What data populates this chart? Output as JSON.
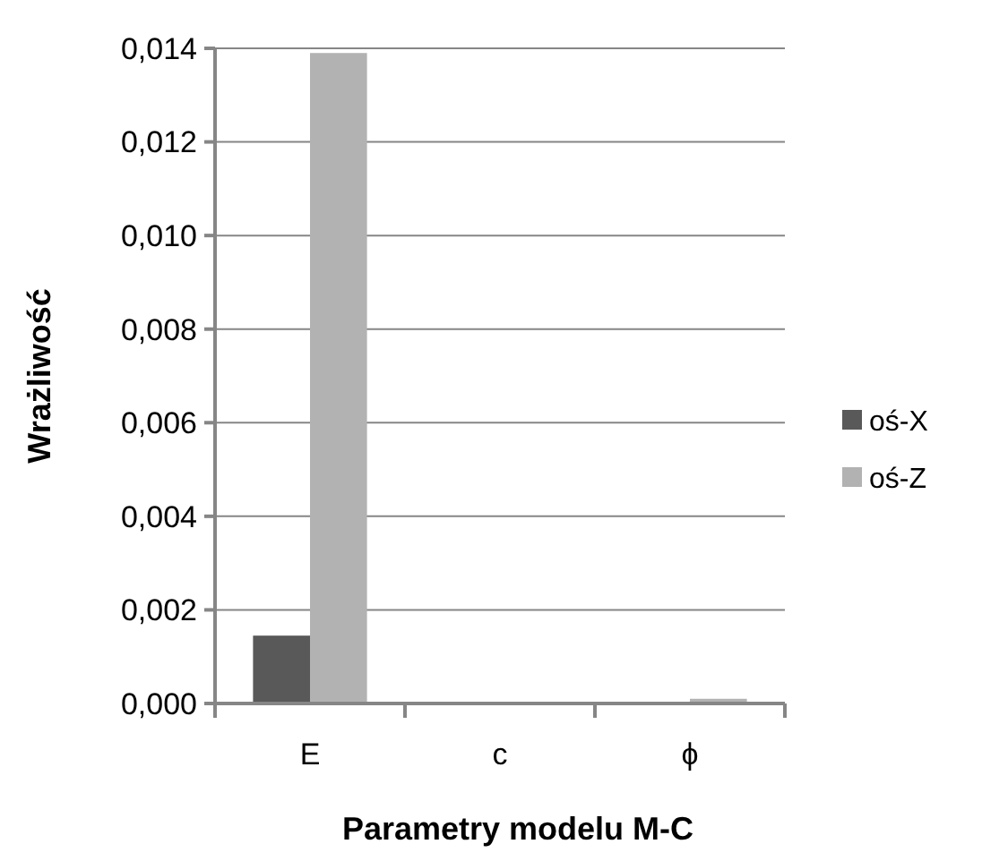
{
  "chart_data": {
    "type": "bar",
    "xlabel": "Parametry modelu M-C",
    "ylabel": "Wrażliwość",
    "categories": [
      "E",
      "c",
      "ϕ"
    ],
    "series": [
      {
        "name": "oś-X",
        "color": "#595959",
        "values": [
          0.00145,
          0,
          0
        ]
      },
      {
        "name": "oś-Z",
        "color": "#b2b2b2",
        "values": [
          0.0139,
          0,
          0.0001
        ]
      }
    ],
    "ylim": [
      0,
      0.014
    ],
    "yticks": [
      {
        "value": 0,
        "label": "0,000"
      },
      {
        "value": 0.002,
        "label": "0,002"
      },
      {
        "value": 0.004,
        "label": "0,004"
      },
      {
        "value": 0.006,
        "label": "0,006"
      },
      {
        "value": 0.008,
        "label": "0,008"
      },
      {
        "value": 0.01,
        "label": "0,010"
      },
      {
        "value": 0.012,
        "label": "0,012"
      },
      {
        "value": 0.014,
        "label": "0,014"
      }
    ],
    "grid": "y",
    "legend": "right"
  }
}
